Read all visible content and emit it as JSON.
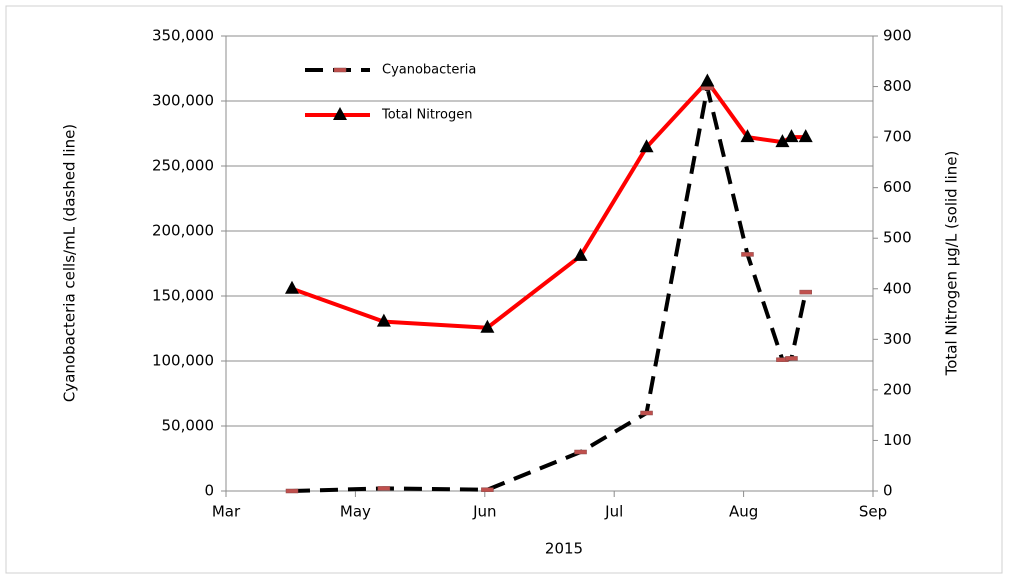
{
  "chart_data": {
    "type": "line",
    "x_label": "2015",
    "y_label": "Cyanobacteria cells/mL (dashed line)",
    "y2_label": "Total Nitrogen µg/L (solid line)",
    "x": [
      0.51,
      1.22,
      2.02,
      2.74,
      3.25,
      3.72,
      4.03,
      4.3,
      4.37,
      4.48
    ],
    "xlim": [
      0,
      5
    ],
    "xticks": [
      {
        "value": 0,
        "label": "Mar"
      },
      {
        "value": 1,
        "label": "May"
      },
      {
        "value": 2,
        "label": "Jun"
      },
      {
        "value": 3,
        "label": "Jul"
      },
      {
        "value": 4,
        "label": "Aug"
      },
      {
        "value": 5,
        "label": "Sep"
      }
    ],
    "ylim": [
      0,
      350000
    ],
    "yticks": [
      0,
      {
        "value": 50000,
        "label": "50,000"
      },
      {
        "value": 100000,
        "label": "100,000"
      },
      {
        "value": 150000,
        "label": "150,000"
      },
      {
        "value": 200000,
        "label": "200,000"
      },
      {
        "value": 250000,
        "label": "250,000"
      },
      {
        "value": 300000,
        "label": "300,000"
      },
      {
        "value": 350000,
        "label": "350,000"
      }
    ],
    "y2lim": [
      0,
      900
    ],
    "y2ticks": [
      0,
      100,
      200,
      300,
      400,
      500,
      600,
      700,
      800,
      900
    ],
    "grid": true,
    "series": [
      {
        "name": "Cyanobacteria",
        "color": "#000000",
        "marker_color": "#c0504d",
        "dashed": true,
        "values": [
          0,
          2000,
          1000,
          30000,
          60000,
          310000,
          182000,
          101000,
          102000,
          153000
        ]
      },
      {
        "name": "Total Nitrogen",
        "color": "#ff0000",
        "marker_color": "#000000",
        "dashed": false,
        "axis": "y2",
        "values": [
          400,
          335,
          323,
          465,
          680,
          810,
          700,
          690,
          700,
          700
        ]
      }
    ]
  }
}
